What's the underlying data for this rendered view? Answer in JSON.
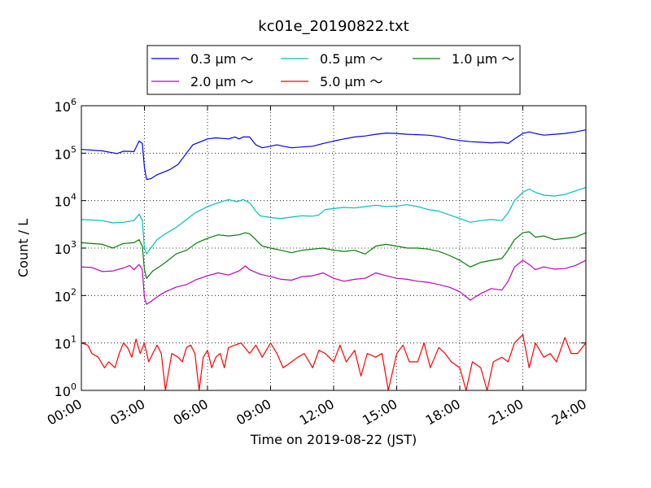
{
  "chart_data": {
    "type": "line",
    "title": "kc01e_20190822.txt",
    "xlabel": "Time on 2019-08-22 (JST)",
    "ylabel": "Count / L",
    "xlim": [
      0,
      24
    ],
    "ylim": [
      1,
      1000000
    ],
    "yscale": "log",
    "grid": true,
    "legend_position": "top, above plot",
    "x_ticks": [
      0,
      3,
      6,
      9,
      12,
      15,
      18,
      21,
      24
    ],
    "x_tick_labels": [
      "00:00",
      "03:00",
      "06:00",
      "09:00",
      "12:00",
      "15:00",
      "18:00",
      "21:00",
      "24:00"
    ],
    "y_ticks": [
      1,
      10,
      100,
      1000,
      10000,
      100000,
      1000000
    ],
    "y_tick_labels": [
      {
        "base": "10",
        "exp": "0"
      },
      {
        "base": "10",
        "exp": "1"
      },
      {
        "base": "10",
        "exp": "2"
      },
      {
        "base": "10",
        "exp": "3"
      },
      {
        "base": "10",
        "exp": "4"
      },
      {
        "base": "10",
        "exp": "5"
      },
      {
        "base": "10",
        "exp": "6"
      }
    ],
    "series": [
      {
        "name": "0.3 μm ～",
        "color": "#0000ff",
        "points": [
          [
            0,
            120000
          ],
          [
            1,
            112000
          ],
          [
            1.7,
            98000
          ],
          [
            2,
            110000
          ],
          [
            2.5,
            108000
          ],
          [
            2.75,
            180000
          ],
          [
            2.9,
            160000
          ],
          [
            3,
            50000
          ],
          [
            3.1,
            28000
          ],
          [
            3.3,
            29000
          ],
          [
            3.6,
            35000
          ],
          [
            4.2,
            45000
          ],
          [
            4.6,
            58000
          ],
          [
            5,
            100000
          ],
          [
            5.3,
            150000
          ],
          [
            5.6,
            170000
          ],
          [
            6,
            200000
          ],
          [
            6.4,
            210000
          ],
          [
            7,
            200000
          ],
          [
            7.3,
            220000
          ],
          [
            7.5,
            200000
          ],
          [
            7.7,
            220000
          ],
          [
            8,
            220000
          ],
          [
            8.3,
            150000
          ],
          [
            8.6,
            130000
          ],
          [
            9,
            140000
          ],
          [
            9.3,
            150000
          ],
          [
            9.6,
            140000
          ],
          [
            10,
            130000
          ],
          [
            10.5,
            135000
          ],
          [
            11,
            140000
          ],
          [
            11.5,
            160000
          ],
          [
            12,
            180000
          ],
          [
            12.5,
            200000
          ],
          [
            13,
            220000
          ],
          [
            13.5,
            230000
          ],
          [
            14,
            250000
          ],
          [
            14.5,
            265000
          ],
          [
            15,
            260000
          ],
          [
            15.5,
            250000
          ],
          [
            16,
            245000
          ],
          [
            16.5,
            240000
          ],
          [
            17,
            225000
          ],
          [
            17.5,
            200000
          ],
          [
            18,
            185000
          ],
          [
            18.5,
            175000
          ],
          [
            19,
            170000
          ],
          [
            19.5,
            165000
          ],
          [
            20,
            170000
          ],
          [
            20.3,
            160000
          ],
          [
            20.6,
            200000
          ],
          [
            21,
            260000
          ],
          [
            21.3,
            280000
          ],
          [
            21.6,
            260000
          ],
          [
            22,
            240000
          ],
          [
            22.5,
            250000
          ],
          [
            23,
            260000
          ],
          [
            23.5,
            280000
          ],
          [
            24,
            310000
          ]
        ]
      },
      {
        "name": "0.5 μm ～",
        "color": "#00bfbf",
        "points": [
          [
            0,
            4000
          ],
          [
            1,
            3800
          ],
          [
            1.5,
            3400
          ],
          [
            2,
            3500
          ],
          [
            2.5,
            3800
          ],
          [
            2.75,
            5200
          ],
          [
            2.9,
            3800
          ],
          [
            3,
            1000
          ],
          [
            3.1,
            750
          ],
          [
            3.3,
            1000
          ],
          [
            3.6,
            1500
          ],
          [
            4,
            2000
          ],
          [
            4.5,
            2700
          ],
          [
            5,
            4000
          ],
          [
            5.4,
            5500
          ],
          [
            6,
            7500
          ],
          [
            6.5,
            9000
          ],
          [
            7,
            10500
          ],
          [
            7.4,
            9500
          ],
          [
            7.7,
            10500
          ],
          [
            8,
            9000
          ],
          [
            8.3,
            6000
          ],
          [
            8.5,
            4800
          ],
          [
            9,
            4400
          ],
          [
            9.5,
            4200
          ],
          [
            10,
            4500
          ],
          [
            10.5,
            4800
          ],
          [
            11,
            4700
          ],
          [
            11.3,
            5000
          ],
          [
            11.6,
            6500
          ],
          [
            12,
            6800
          ],
          [
            12.5,
            7200
          ],
          [
            13,
            7000
          ],
          [
            13.5,
            7500
          ],
          [
            14,
            8000
          ],
          [
            14.5,
            7500
          ],
          [
            15,
            7700
          ],
          [
            15.5,
            8200
          ],
          [
            16,
            7500
          ],
          [
            16.5,
            6500
          ],
          [
            17,
            6000
          ],
          [
            17.5,
            5000
          ],
          [
            18,
            4200
          ],
          [
            18.5,
            3500
          ],
          [
            19,
            3800
          ],
          [
            19.5,
            4000
          ],
          [
            20,
            3800
          ],
          [
            20.3,
            5500
          ],
          [
            20.6,
            10000
          ],
          [
            21,
            15000
          ],
          [
            21.3,
            17500
          ],
          [
            21.6,
            15000
          ],
          [
            22,
            13000
          ],
          [
            22.5,
            12500
          ],
          [
            23,
            13500
          ],
          [
            23.5,
            16000
          ],
          [
            24,
            19000
          ]
        ]
      },
      {
        "name": "1.0 μm ～",
        "color": "#008000",
        "points": [
          [
            0,
            1300
          ],
          [
            1,
            1200
          ],
          [
            1.5,
            1000
          ],
          [
            2,
            1250
          ],
          [
            2.5,
            1300
          ],
          [
            2.75,
            1500
          ],
          [
            2.9,
            1100
          ],
          [
            3,
            350
          ],
          [
            3.1,
            230
          ],
          [
            3.4,
            330
          ],
          [
            3.7,
            400
          ],
          [
            4,
            500
          ],
          [
            4.5,
            750
          ],
          [
            5,
            900
          ],
          [
            5.5,
            1300
          ],
          [
            6,
            1600
          ],
          [
            6.5,
            1900
          ],
          [
            7,
            1800
          ],
          [
            7.5,
            1900
          ],
          [
            7.8,
            2100
          ],
          [
            8,
            2000
          ],
          [
            8.3,
            1500
          ],
          [
            8.6,
            1100
          ],
          [
            9,
            1000
          ],
          [
            9.5,
            900
          ],
          [
            10,
            800
          ],
          [
            10.5,
            900
          ],
          [
            11,
            950
          ],
          [
            11.5,
            1000
          ],
          [
            12,
            900
          ],
          [
            12.5,
            850
          ],
          [
            13,
            900
          ],
          [
            13.5,
            750
          ],
          [
            14,
            1100
          ],
          [
            14.5,
            1200
          ],
          [
            15,
            1100
          ],
          [
            15.5,
            1000
          ],
          [
            16,
            1000
          ],
          [
            16.5,
            950
          ],
          [
            17,
            850
          ],
          [
            17.5,
            700
          ],
          [
            18,
            550
          ],
          [
            18.5,
            400
          ],
          [
            19,
            500
          ],
          [
            19.5,
            550
          ],
          [
            20,
            600
          ],
          [
            20.3,
            900
          ],
          [
            20.6,
            1500
          ],
          [
            21,
            2100
          ],
          [
            21.3,
            2200
          ],
          [
            21.6,
            1700
          ],
          [
            22,
            1800
          ],
          [
            22.5,
            1500
          ],
          [
            23,
            1600
          ],
          [
            23.5,
            1700
          ],
          [
            24,
            2100
          ]
        ]
      },
      {
        "name": "2.0 μm ～",
        "color": "#bf00bf",
        "points": [
          [
            0,
            400
          ],
          [
            0.5,
            390
          ],
          [
            1,
            320
          ],
          [
            1.5,
            330
          ],
          [
            2,
            380
          ],
          [
            2.3,
            430
          ],
          [
            2.5,
            350
          ],
          [
            2.75,
            450
          ],
          [
            2.9,
            350
          ],
          [
            3,
            90
          ],
          [
            3.1,
            65
          ],
          [
            3.4,
            80
          ],
          [
            3.7,
            100
          ],
          [
            4,
            120
          ],
          [
            4.5,
            150
          ],
          [
            5,
            170
          ],
          [
            5.5,
            220
          ],
          [
            6,
            260
          ],
          [
            6.5,
            300
          ],
          [
            7,
            270
          ],
          [
            7.5,
            330
          ],
          [
            7.8,
            420
          ],
          [
            8,
            350
          ],
          [
            8.5,
            280
          ],
          [
            9,
            250
          ],
          [
            9.5,
            220
          ],
          [
            10,
            210
          ],
          [
            10.5,
            250
          ],
          [
            11,
            260
          ],
          [
            11.5,
            300
          ],
          [
            12,
            230
          ],
          [
            12.5,
            200
          ],
          [
            13,
            220
          ],
          [
            13.5,
            230
          ],
          [
            14,
            300
          ],
          [
            14.5,
            260
          ],
          [
            15,
            230
          ],
          [
            15.5,
            220
          ],
          [
            16,
            200
          ],
          [
            16.5,
            190
          ],
          [
            17,
            170
          ],
          [
            17.5,
            150
          ],
          [
            18,
            120
          ],
          [
            18.5,
            80
          ],
          [
            19,
            110
          ],
          [
            19.5,
            140
          ],
          [
            20,
            130
          ],
          [
            20.3,
            200
          ],
          [
            20.6,
            400
          ],
          [
            21,
            550
          ],
          [
            21.3,
            450
          ],
          [
            21.6,
            350
          ],
          [
            22,
            400
          ],
          [
            22.5,
            360
          ],
          [
            23,
            370
          ],
          [
            23.5,
            430
          ],
          [
            24,
            550
          ]
        ]
      },
      {
        "name": "5.0 μm ～",
        "color": "#ff0000",
        "points": [
          [
            0,
            10
          ],
          [
            0.3,
            9
          ],
          [
            0.5,
            6
          ],
          [
            0.8,
            5
          ],
          [
            1.1,
            3
          ],
          [
            1.3,
            4
          ],
          [
            1.6,
            3
          ],
          [
            1.8,
            6
          ],
          [
            2,
            10
          ],
          [
            2.2,
            8
          ],
          [
            2.4,
            5
          ],
          [
            2.6,
            12
          ],
          [
            2.8,
            6
          ],
          [
            3,
            10
          ],
          [
            3.2,
            4
          ],
          [
            3.4,
            6
          ],
          [
            3.6,
            9
          ],
          [
            3.8,
            6
          ],
          [
            4,
            1
          ],
          [
            4.3,
            6
          ],
          [
            4.6,
            5
          ],
          [
            4.8,
            4
          ],
          [
            5,
            8
          ],
          [
            5.2,
            9
          ],
          [
            5.4,
            6
          ],
          [
            5.6,
            1
          ],
          [
            5.8,
            5
          ],
          [
            6,
            7
          ],
          [
            6.2,
            3
          ],
          [
            6.4,
            5
          ],
          [
            6.6,
            6
          ],
          [
            6.8,
            3
          ],
          [
            7,
            8
          ],
          [
            7.3,
            9
          ],
          [
            7.6,
            10
          ],
          [
            8,
            6
          ],
          [
            8.3,
            9
          ],
          [
            8.6,
            5
          ],
          [
            9,
            10
          ],
          [
            9.3,
            6
          ],
          [
            9.6,
            3
          ],
          [
            10,
            4
          ],
          [
            10.3,
            5
          ],
          [
            10.6,
            6
          ],
          [
            11,
            3
          ],
          [
            11.3,
            7
          ],
          [
            11.6,
            6
          ],
          [
            12,
            4
          ],
          [
            12.3,
            9
          ],
          [
            12.6,
            4
          ],
          [
            13,
            7
          ],
          [
            13.3,
            2
          ],
          [
            13.6,
            6
          ],
          [
            14,
            5
          ],
          [
            14.3,
            6
          ],
          [
            14.6,
            1
          ],
          [
            15,
            6
          ],
          [
            15.3,
            9
          ],
          [
            15.6,
            4
          ],
          [
            16,
            4
          ],
          [
            16.3,
            10
          ],
          [
            16.6,
            3
          ],
          [
            17,
            8
          ],
          [
            17.3,
            6
          ],
          [
            17.6,
            4
          ],
          [
            18,
            3
          ],
          [
            18.3,
            1
          ],
          [
            18.6,
            4
          ],
          [
            19,
            3
          ],
          [
            19.3,
            1
          ],
          [
            19.6,
            4
          ],
          [
            20,
            5
          ],
          [
            20.3,
            4
          ],
          [
            20.6,
            10
          ],
          [
            21,
            15
          ],
          [
            21.3,
            3
          ],
          [
            21.6,
            10
          ],
          [
            22,
            5
          ],
          [
            22.3,
            6
          ],
          [
            22.6,
            4
          ],
          [
            23,
            13
          ],
          [
            23.3,
            6
          ],
          [
            23.6,
            6
          ],
          [
            24,
            10
          ]
        ]
      }
    ]
  }
}
